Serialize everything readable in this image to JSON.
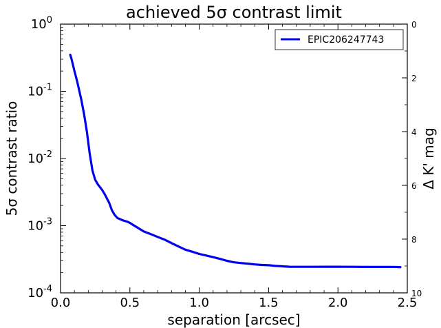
{
  "chart_data": {
    "type": "line",
    "title": "achieved 5σ contrast limit",
    "xlabel": "separation [arcsec]",
    "ylabel": "5σ contrast ratio",
    "y2label": "Δ K' mag",
    "xlim": [
      0.0,
      2.5
    ],
    "ylim": [
      0.0001,
      1
    ],
    "yscale": "log",
    "y2lim": [
      0,
      10
    ],
    "xticks": [
      "0.0",
      "0.5",
      "1.0",
      "1.5",
      "2.0",
      "2.5"
    ],
    "yticks": [
      {
        "base": "10",
        "exp": "0"
      },
      {
        "base": "10",
        "exp": "-1"
      },
      {
        "base": "10",
        "exp": "-2"
      },
      {
        "base": "10",
        "exp": "-3"
      },
      {
        "base": "10",
        "exp": "-4"
      }
    ],
    "y2ticks": [
      "0",
      "2",
      "4",
      "6",
      "8",
      "10"
    ],
    "grid": false,
    "legend_position": "top-right",
    "series": [
      {
        "name": "EPIC206247743",
        "color": "#0000ee",
        "x": [
          0.07,
          0.08,
          0.1,
          0.12,
          0.15,
          0.17,
          0.19,
          0.21,
          0.23,
          0.25,
          0.27,
          0.3,
          0.32,
          0.35,
          0.37,
          0.39,
          0.41,
          0.43,
          0.45,
          0.48,
          0.5,
          0.55,
          0.6,
          0.65,
          0.7,
          0.75,
          0.8,
          0.85,
          0.9,
          0.95,
          1.0,
          1.05,
          1.1,
          1.15,
          1.2,
          1.25,
          1.3,
          1.35,
          1.4,
          1.45,
          1.5,
          1.55,
          1.6,
          1.65,
          1.7,
          1.8,
          1.9,
          2.0,
          2.1,
          2.2,
          2.3,
          2.4,
          2.45
        ],
        "values": [
          0.35,
          0.3,
          0.2,
          0.14,
          0.075,
          0.045,
          0.025,
          0.012,
          0.0066,
          0.0048,
          0.0041,
          0.0034,
          0.0029,
          0.0022,
          0.0017,
          0.00145,
          0.0013,
          0.00125,
          0.0012,
          0.00115,
          0.0011,
          0.00095,
          0.00082,
          0.00075,
          0.00068,
          0.00062,
          0.00055,
          0.00049,
          0.00044,
          0.00041,
          0.00038,
          0.00036,
          0.00034,
          0.00032,
          0.0003,
          0.000285,
          0.000278,
          0.000272,
          0.000265,
          0.00026,
          0.000258,
          0.000252,
          0.000248,
          0.000245,
          0.000244,
          0.000244,
          0.000245,
          0.000245,
          0.000244,
          0.000243,
          0.000243,
          0.000243,
          0.000242
        ]
      }
    ]
  }
}
